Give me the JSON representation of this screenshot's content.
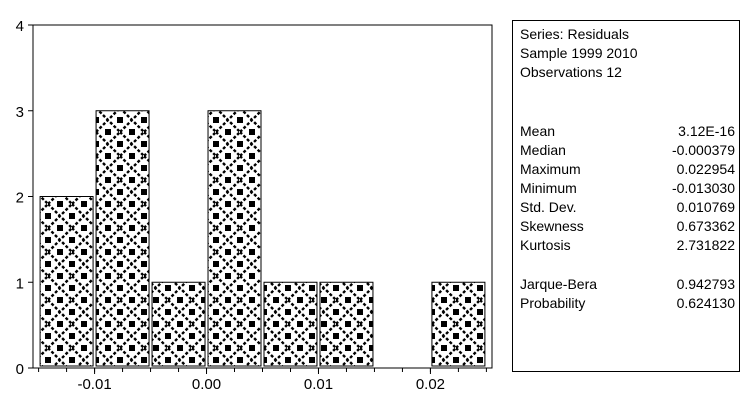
{
  "chart_data": {
    "type": "bar",
    "bins": [
      {
        "from": -0.015,
        "to": -0.01,
        "count": 2
      },
      {
        "from": -0.01,
        "to": -0.005,
        "count": 3
      },
      {
        "from": -0.005,
        "to": 0.0,
        "count": 1
      },
      {
        "from": 0.0,
        "to": 0.005,
        "count": 3
      },
      {
        "from": 0.005,
        "to": 0.01,
        "count": 1
      },
      {
        "from": 0.01,
        "to": 0.015,
        "count": 1
      },
      {
        "from": 0.015,
        "to": 0.02,
        "count": 0
      },
      {
        "from": 0.02,
        "to": 0.025,
        "count": 1
      }
    ],
    "xlim": [
      -0.0155,
      0.0255
    ],
    "ylim": [
      0,
      4
    ],
    "x_ticks": [
      {
        "value": -0.01,
        "label": "-0.01"
      },
      {
        "value": 0.0,
        "label": "0.00"
      },
      {
        "value": 0.01,
        "label": "0.01"
      },
      {
        "value": 0.02,
        "label": "0.02"
      }
    ],
    "y_ticks": [
      {
        "value": 0,
        "label": "0"
      },
      {
        "value": 1,
        "label": "1"
      },
      {
        "value": 2,
        "label": "2"
      },
      {
        "value": 3,
        "label": "3"
      },
      {
        "value": 4,
        "label": "4"
      }
    ],
    "bar_fill": "black/white diamond lattice pattern",
    "grid": false,
    "title": "",
    "xlabel": "",
    "ylabel": ""
  },
  "stats": {
    "series": "Series: Residuals",
    "sample": "Sample 1999 2010",
    "observations": "Observations 12",
    "rows": [
      {
        "label": "Mean",
        "value": "3.12E-16"
      },
      {
        "label": "Median",
        "value": "-0.000379"
      },
      {
        "label": "Maximum",
        "value": "0.022954"
      },
      {
        "label": "Minimum",
        "value": "-0.013030"
      },
      {
        "label": "Std. Dev.",
        "value": "0.010769"
      },
      {
        "label": "Skewness",
        "value": "0.673362"
      },
      {
        "label": "Kurtosis",
        "value": "2.731822"
      }
    ],
    "test_rows": [
      {
        "label": "Jarque-Bera",
        "value": "0.942793"
      },
      {
        "label": "Probability",
        "value": "0.624130"
      }
    ]
  }
}
